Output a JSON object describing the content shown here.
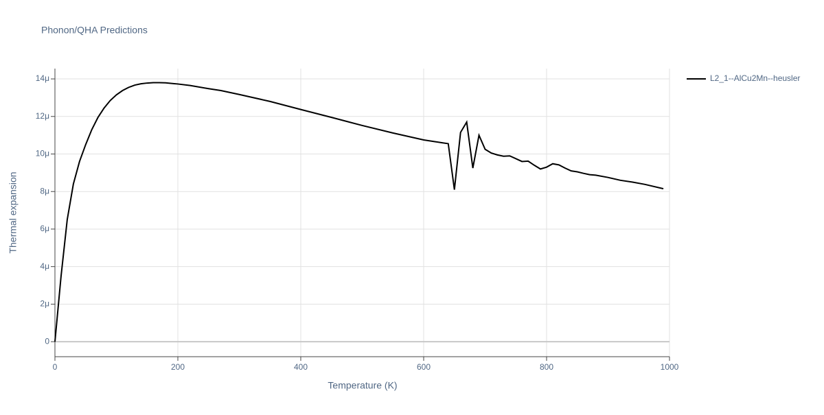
{
  "chart_data": {
    "type": "line",
    "title": "Phonon/QHA Predictions",
    "x_label": "Temperature (K)",
    "y_label": "Thermal expansion",
    "x": [
      0,
      10,
      20,
      30,
      40,
      50,
      60,
      70,
      80,
      90,
      100,
      110,
      120,
      130,
      140,
      150,
      160,
      170,
      180,
      200,
      220,
      250,
      270,
      300,
      350,
      400,
      450,
      500,
      550,
      600,
      610,
      620,
      630,
      640,
      650,
      660,
      670,
      680,
      690,
      700,
      710,
      720,
      730,
      740,
      750,
      760,
      770,
      780,
      790,
      800,
      810,
      820,
      830,
      840,
      850,
      860,
      870,
      880,
      900,
      920,
      940,
      960,
      990
    ],
    "series": [
      {
        "name": "L2_1--AlCu2Mn--heusler",
        "color": "#000000",
        "values": [
          0,
          3.5e-06,
          6.5e-06,
          8.4e-06,
          9.6e-06,
          1.05e-05,
          1.13e-05,
          1.195e-05,
          1.245e-05,
          1.285e-05,
          1.315e-05,
          1.338e-05,
          1.355e-05,
          1.367e-05,
          1.374e-05,
          1.378e-05,
          1.38e-05,
          1.38e-05,
          1.379e-05,
          1.373e-05,
          1.365e-05,
          1.348e-05,
          1.338e-05,
          1.317e-05,
          1.28e-05,
          1.237e-05,
          1.195e-05,
          1.152e-05,
          1.112e-05,
          1.075e-05,
          1.07e-05,
          1.065e-05,
          1.06e-05,
          1.055e-05,
          8.1e-06,
          1.115e-05,
          1.17e-05,
          9.25e-06,
          1.1e-05,
          1.025e-05,
          1.005e-05,
          9.95e-06,
          9.88e-06,
          9.9e-06,
          9.75e-06,
          9.6e-06,
          9.62e-06,
          9.4e-06,
          9.2e-06,
          9.3e-06,
          9.48e-06,
          9.42e-06,
          9.25e-06,
          9.1e-06,
          9.05e-06,
          8.97e-06,
          8.9e-06,
          8.87e-06,
          8.75e-06,
          8.6e-06,
          8.5e-06,
          8.38e-06,
          8.15e-06
        ]
      }
    ],
    "xlim": [
      0,
      1000
    ],
    "xticks": [
      0,
      200,
      400,
      600,
      800,
      1000
    ],
    "ylim": [
      -8e-07,
      1.455e-05
    ],
    "yticks": [
      0,
      {
        "value": 2e-06,
        "label": "2μ"
      },
      {
        "value": 4e-06,
        "label": "4μ"
      },
      {
        "value": 6e-06,
        "label": "6μ"
      },
      {
        "value": 8e-06,
        "label": "8μ"
      },
      {
        "value": 1e-05,
        "label": "10μ"
      },
      {
        "value": 1.2e-05,
        "label": "12μ"
      },
      {
        "value": 1.4e-05,
        "label": "14μ"
      }
    ],
    "grid": true,
    "legend": "right"
  }
}
